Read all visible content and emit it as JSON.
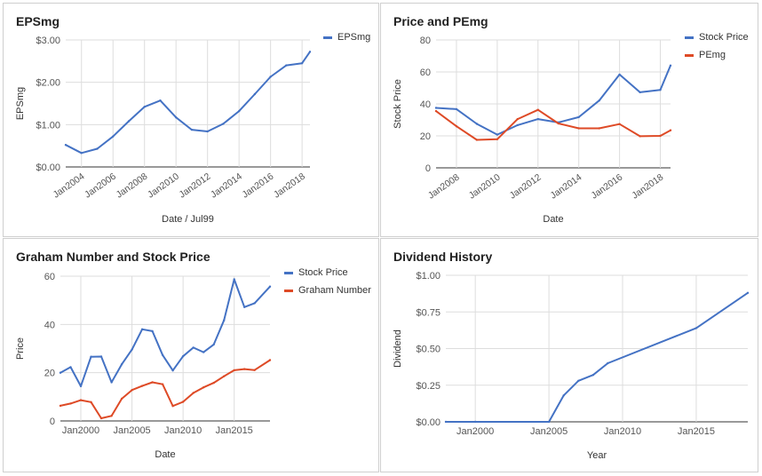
{
  "chart_data": [
    {
      "type": "line",
      "title": "EPSmg",
      "xlabel": "Date / Jul99",
      "ylabel": "EPSmg",
      "x_tick_labels": [
        "Jan2004",
        "Jan2006",
        "Jan2008",
        "Jan2010",
        "Jan2012",
        "Jan2014",
        "Jan2016",
        "Jan2018"
      ],
      "y_tick_labels": [
        "$0.00",
        "$1.00",
        "$2.00",
        "$3.00"
      ],
      "xlim": [
        2003,
        2018.5
      ],
      "ylim": [
        0,
        3
      ],
      "grid": true,
      "legend": "right",
      "series": [
        {
          "name": "EPSmg",
          "color": "#4472c4",
          "x": [
            2003,
            2004,
            2005,
            2006,
            2007,
            2008,
            2009,
            2010,
            2011,
            2012,
            2013,
            2014,
            2015,
            2016,
            2017,
            2018,
            2018.5
          ],
          "y": [
            0.52,
            0.33,
            0.43,
            0.72,
            1.08,
            1.42,
            1.57,
            1.17,
            0.88,
            0.84,
            1.02,
            1.32,
            1.72,
            2.13,
            2.4,
            2.45,
            2.72
          ]
        }
      ]
    },
    {
      "type": "line",
      "title": "Price and PEmg",
      "xlabel": "Date",
      "ylabel": "Stock Price",
      "x_tick_labels": [
        "Jan2008",
        "Jan2010",
        "Jan2012",
        "Jan2014",
        "Jan2016",
        "Jan2018"
      ],
      "y_tick_labels": [
        "0",
        "20",
        "40",
        "60",
        "80"
      ],
      "xlim": [
        2007,
        2018.5
      ],
      "ylim": [
        0,
        80
      ],
      "grid": true,
      "legend": "right",
      "series": [
        {
          "name": "Stock Price",
          "color": "#4472c4",
          "x": [
            2007,
            2008,
            2009,
            2010,
            2011,
            2012,
            2013,
            2014,
            2015,
            2016,
            2017,
            2018,
            2018.5
          ],
          "y": [
            37.5,
            36.7,
            27.5,
            20.8,
            26.7,
            30.5,
            28.4,
            31.7,
            42.1,
            58.4,
            47.3,
            48.8,
            64
          ]
        },
        {
          "name": "PEmg",
          "color": "#de4a26",
          "x": [
            2007,
            2008,
            2009,
            2010,
            2011,
            2012,
            2013,
            2014,
            2015,
            2016,
            2017,
            2018,
            2018.5
          ],
          "y": [
            35.5,
            26,
            17.5,
            17.9,
            30.5,
            36.3,
            27.8,
            24.7,
            24.7,
            27.4,
            19.8,
            20,
            23.5
          ]
        }
      ]
    },
    {
      "type": "line",
      "title": "Graham Number and Stock Price",
      "xlabel": "Date",
      "ylabel": "Price",
      "x_tick_labels": [
        "Jan2000",
        "Jan2005",
        "Jan2010",
        "Jan2015"
      ],
      "y_tick_labels": [
        "0",
        "20",
        "40",
        "60"
      ],
      "xlim": [
        1998,
        2018.5
      ],
      "ylim": [
        0,
        60
      ],
      "grid": true,
      "legend": "right",
      "series": [
        {
          "name": "Stock Price",
          "color": "#4472c4",
          "x": [
            1998,
            1999,
            2000,
            2001,
            2002,
            2003,
            2004,
            2005,
            2006,
            2007,
            2008,
            2009,
            2010,
            2011,
            2012,
            2013,
            2014,
            2015,
            2016,
            2017,
            2018.5
          ],
          "y": [
            20,
            22.3,
            14.4,
            26.6,
            26.7,
            16,
            23.5,
            29.6,
            38,
            37.2,
            27.3,
            20.9,
            26.8,
            30.4,
            28.5,
            31.7,
            41.7,
            58.7,
            47.2,
            48.8,
            55.7
          ]
        },
        {
          "name": "Graham Number",
          "color": "#de4a26",
          "x": [
            1998,
            1999,
            2000,
            2001,
            2002,
            2003,
            2004,
            2005,
            2006,
            2007,
            2008,
            2009,
            2010,
            2011,
            2012,
            2013,
            2014,
            2015,
            2016,
            2017,
            2018.5
          ],
          "y": [
            6.3,
            7.2,
            8.6,
            7.8,
            1.1,
            2.1,
            9.2,
            12.8,
            14.5,
            16,
            15.2,
            6.2,
            7.9,
            11.6,
            13.9,
            15.8,
            18.5,
            21,
            21.5,
            21.1,
            25.2
          ]
        }
      ]
    },
    {
      "type": "line",
      "title": "Dividend History",
      "xlabel": "Year",
      "ylabel": "Dividend",
      "x_tick_labels": [
        "Jan2000",
        "Jan2005",
        "Jan2010",
        "Jan2015"
      ],
      "y_tick_labels": [
        "$0.00",
        "$0.25",
        "$0.50",
        "$0.75",
        "$1.00"
      ],
      "xlim": [
        1998,
        2018.5
      ],
      "ylim": [
        0,
        1
      ],
      "grid": true,
      "series": [
        {
          "color": "#4472c4",
          "x": [
            1998,
            2000,
            2005,
            2006,
            2007,
            2008,
            2009,
            2015,
            2018.5
          ],
          "y": [
            0,
            0,
            0,
            0.18,
            0.28,
            0.32,
            0.4,
            0.64,
            0.88
          ]
        }
      ]
    }
  ]
}
